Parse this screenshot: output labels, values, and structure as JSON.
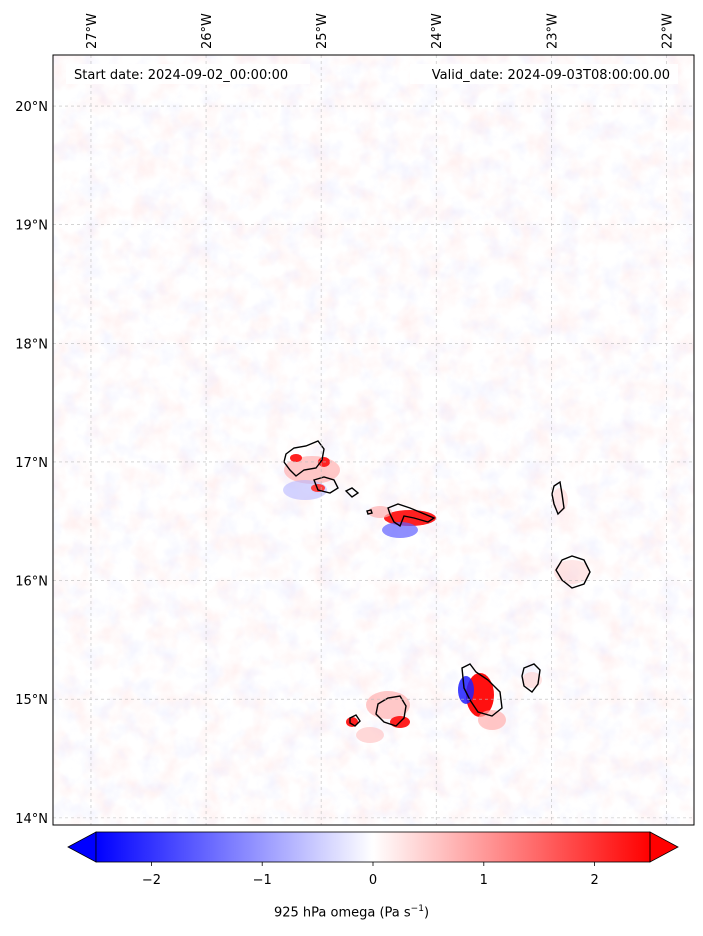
{
  "map": {
    "start_date": "Start date: 2024-09-02_00:00:00",
    "valid_date": "Valid_date: 2024-09-03T08:00:00.00",
    "lon_ticks": [
      "27°W",
      "26°W",
      "25°W",
      "24°W",
      "23°W",
      "22°W"
    ],
    "lat_ticks": [
      "20°N",
      "19°N",
      "18°N",
      "17°N",
      "16°N",
      "15°N",
      "14°N"
    ],
    "lon_values": [
      -27,
      -26,
      -25,
      -24,
      -23,
      -22
    ],
    "lat_values": [
      20,
      19,
      18,
      17,
      16,
      15,
      14
    ],
    "extent": {
      "lon_min": -27.33,
      "lon_max": -21.76,
      "lat_min": 13.94,
      "lat_max": 20.43
    },
    "islands": [
      "Santo Antão",
      "São Vicente",
      "Santa Luzia",
      "São Nicolau",
      "Sal",
      "Boa Vista",
      "Fogo",
      "Brava",
      "Santiago",
      "Maio"
    ]
  },
  "colorbar": {
    "ticks": [
      "−2",
      "−1",
      "0",
      "1",
      "2"
    ],
    "tick_values": [
      -2,
      -1,
      0,
      1,
      2
    ],
    "range": [
      -2.5,
      2.5
    ],
    "label_main": "925 hPa omega (Pa s",
    "label_sup": "−1",
    "label_end": ")",
    "cmap_low": "#0000ff",
    "cmap_mid": "#ffffff",
    "cmap_high": "#ff0000"
  }
}
